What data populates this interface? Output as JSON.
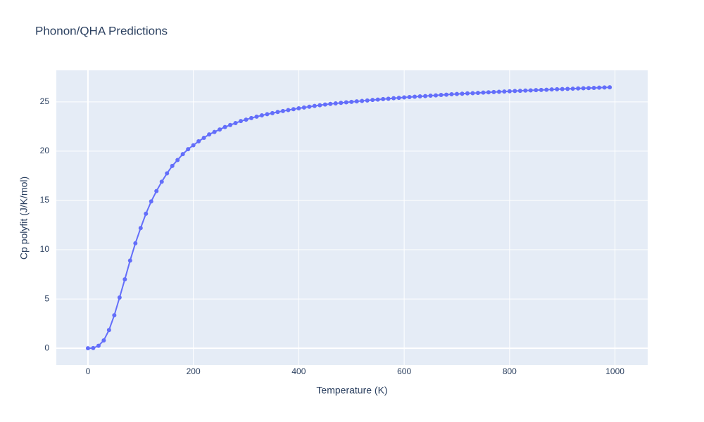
{
  "chart_data": {
    "type": "line",
    "title": "Phonon/QHA Predictions",
    "x_label": "Temperature (K)",
    "y_label": "Cp polyfit (J/K/mol)",
    "color": "#636efa",
    "markers": true,
    "grid": true,
    "xlim": [
      -60,
      1062
    ],
    "ylim": [
      -1.7,
      28.2
    ],
    "xticks": [
      0,
      200,
      400,
      600,
      800,
      1000
    ],
    "yticks": [
      0,
      5,
      10,
      15,
      20,
      25
    ],
    "x": [
      0,
      10,
      20,
      30,
      40,
      50,
      60,
      70,
      80,
      90,
      100,
      110,
      120,
      130,
      140,
      150,
      160,
      170,
      180,
      190,
      200,
      210,
      220,
      230,
      240,
      250,
      260,
      270,
      280,
      290,
      300,
      310,
      320,
      330,
      340,
      350,
      360,
      370,
      380,
      390,
      400,
      410,
      420,
      430,
      440,
      450,
      460,
      470,
      480,
      490,
      500,
      510,
      520,
      530,
      540,
      550,
      560,
      570,
      580,
      590,
      600,
      610,
      620,
      630,
      640,
      650,
      660,
      670,
      680,
      690,
      700,
      710,
      720,
      730,
      740,
      750,
      760,
      770,
      780,
      790,
      800,
      810,
      820,
      830,
      840,
      850,
      860,
      870,
      880,
      890,
      900,
      910,
      920,
      930,
      940,
      950,
      960,
      970,
      980,
      990
    ],
    "values": [
      0,
      0.02,
      0.25,
      0.8,
      1.85,
      3.35,
      5.15,
      7.0,
      8.9,
      10.65,
      12.2,
      13.65,
      14.9,
      15.95,
      16.9,
      17.75,
      18.5,
      19.1,
      19.7,
      20.2,
      20.6,
      21.0,
      21.35,
      21.7,
      21.95,
      22.2,
      22.45,
      22.65,
      22.85,
      23.05,
      23.2,
      23.36,
      23.5,
      23.63,
      23.75,
      23.86,
      23.97,
      24.07,
      24.17,
      24.26,
      24.35,
      24.43,
      24.51,
      24.59,
      24.66,
      24.73,
      24.79,
      24.85,
      24.9,
      24.95,
      25.0,
      25.05,
      25.1,
      25.14,
      25.19,
      25.23,
      25.28,
      25.32,
      25.37,
      25.41,
      25.45,
      25.49,
      25.52,
      25.56,
      25.59,
      25.63,
      25.66,
      25.7,
      25.73,
      25.77,
      25.8,
      25.83,
      25.86,
      25.88,
      25.91,
      25.94,
      25.97,
      26.0,
      26.02,
      26.05,
      26.08,
      26.1,
      26.12,
      26.15,
      26.17,
      26.19,
      26.21,
      26.23,
      26.26,
      26.28,
      26.3,
      26.32,
      26.34,
      26.36,
      26.38,
      26.4,
      26.42,
      26.44,
      26.46,
      26.48
    ]
  }
}
